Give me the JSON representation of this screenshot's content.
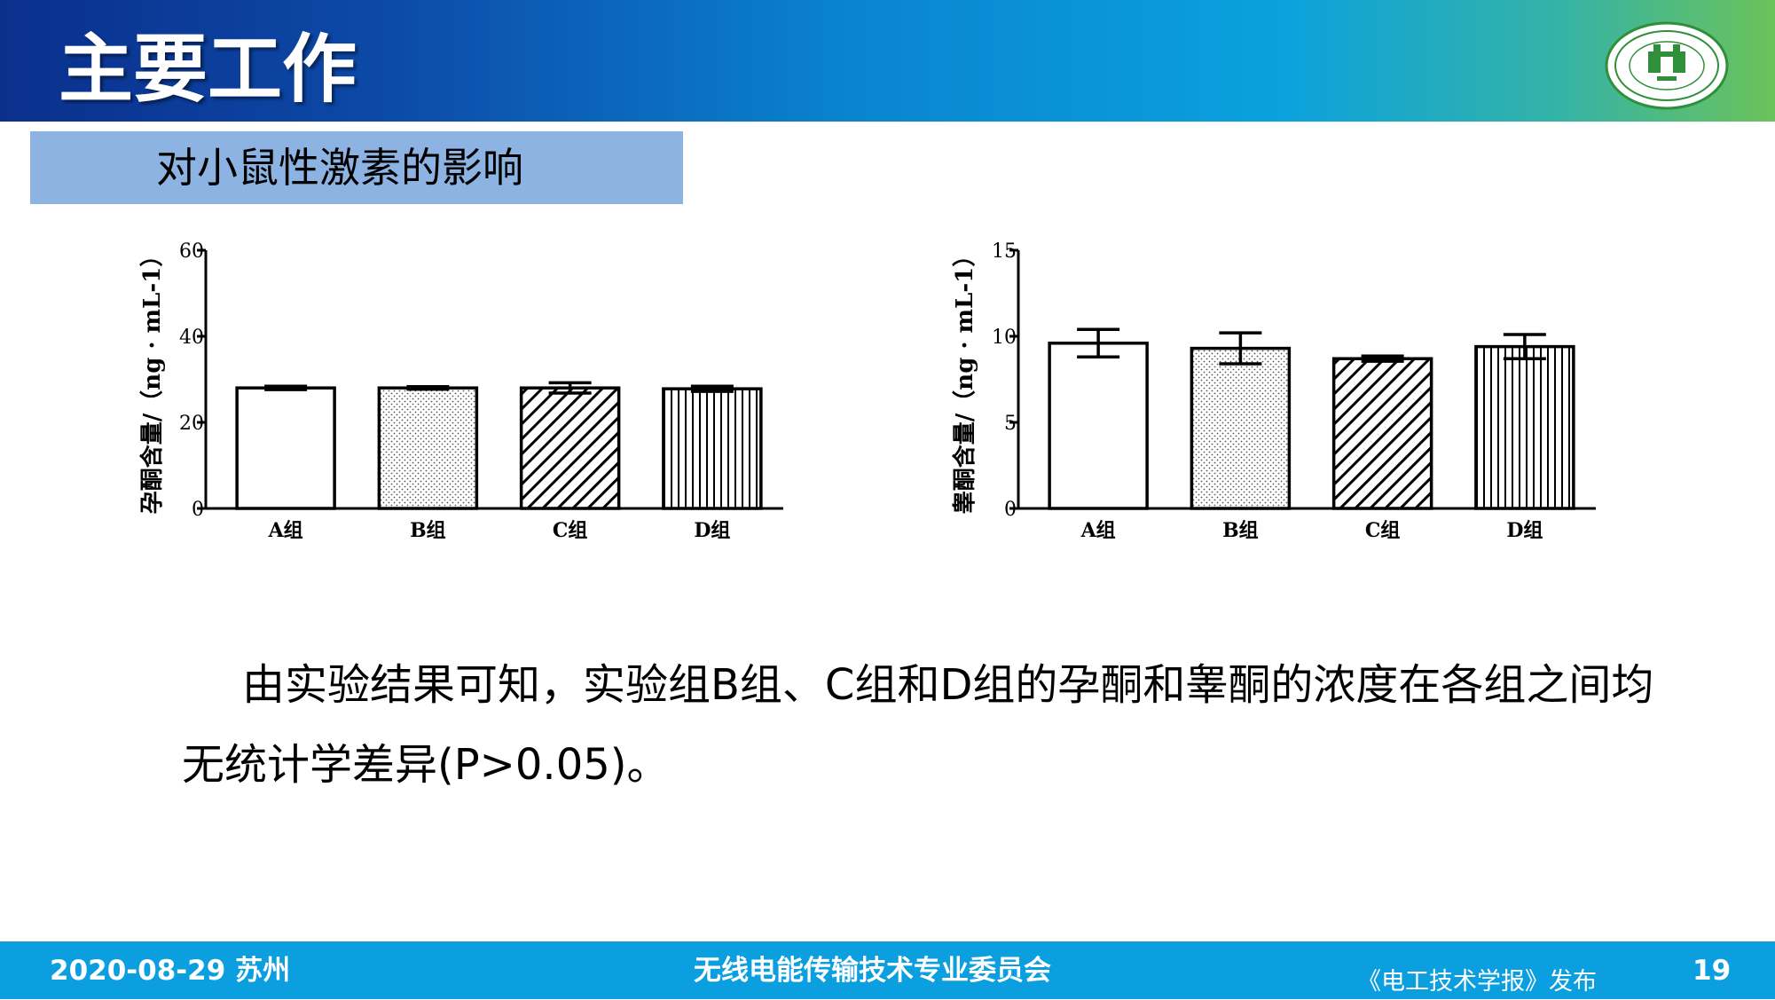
{
  "header": {
    "title": "主要工作"
  },
  "section": {
    "title": "对小鼠性激素的影响"
  },
  "colors": {
    "bar_stroke": "#000000",
    "bar_fill": "#ffffff"
  },
  "chart_data": [
    {
      "type": "bar",
      "categories": [
        "A组",
        "B组",
        "C组",
        "D组"
      ],
      "values": [
        28,
        28,
        28,
        27.8
      ],
      "errors": [
        0.4,
        0.3,
        1.2,
        0.6
      ],
      "patterns": [
        "none",
        "dots",
        "diagonal",
        "vertical"
      ],
      "ylabel": "孕酮含量/（ng · mL-1）",
      "ylim": [
        0,
        60
      ],
      "yticks": [
        "0",
        "20",
        "40",
        "60"
      ]
    },
    {
      "type": "bar",
      "categories": [
        "A组",
        "B组",
        "C组",
        "D组"
      ],
      "values": [
        9.6,
        9.3,
        8.7,
        9.4
      ],
      "errors": [
        0.8,
        0.9,
        0.15,
        0.7
      ],
      "patterns": [
        "none",
        "dots",
        "diagonal",
        "vertical"
      ],
      "ylabel": "睾酮含量/（ng · mL-1）",
      "ylim": [
        0,
        15
      ],
      "yticks": [
        "0",
        "5",
        "10",
        "15"
      ]
    }
  ],
  "conclusion": {
    "text": "由实验结果可知，实验组B组、C组和D组的孕酮和睾酮的浓度在各组之间均无统计学差异(P>0.05)。"
  },
  "footer": {
    "date_location": "2020-08-29  苏州",
    "organization": "无线电能传输技术专业委员会",
    "publisher": "《电工技术学报》发布",
    "page_number": "19"
  }
}
